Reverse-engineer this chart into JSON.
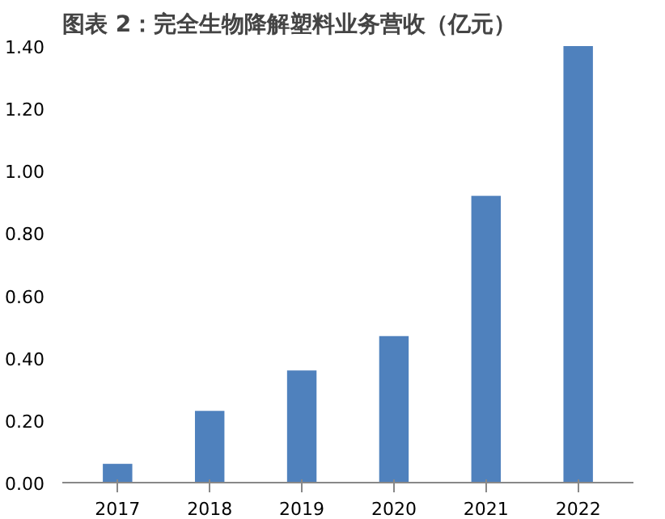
{
  "chart_data": {
    "type": "bar",
    "title": "图表 2：完全生物降解塑料业务营收（亿元）",
    "categories": [
      "2017",
      "2018",
      "2019",
      "2020",
      "2021",
      "2022"
    ],
    "values": [
      0.06,
      0.23,
      0.36,
      0.47,
      0.92,
      1.4
    ],
    "color": "#4f81bd",
    "ylim": [
      0,
      1.4
    ],
    "yticks": [
      {
        "value": 0,
        "label": "0.00"
      },
      {
        "value": 0.2,
        "label": "0.20"
      },
      {
        "value": 0.4,
        "label": "0.40"
      },
      {
        "value": 0.6,
        "label": "0.60"
      },
      {
        "value": 0.8,
        "label": "0.80"
      },
      {
        "value": 1.0,
        "label": "1.00"
      },
      {
        "value": 1.2,
        "label": "1.20"
      },
      {
        "value": 1.4,
        "label": "1.40"
      }
    ],
    "grid": false
  }
}
